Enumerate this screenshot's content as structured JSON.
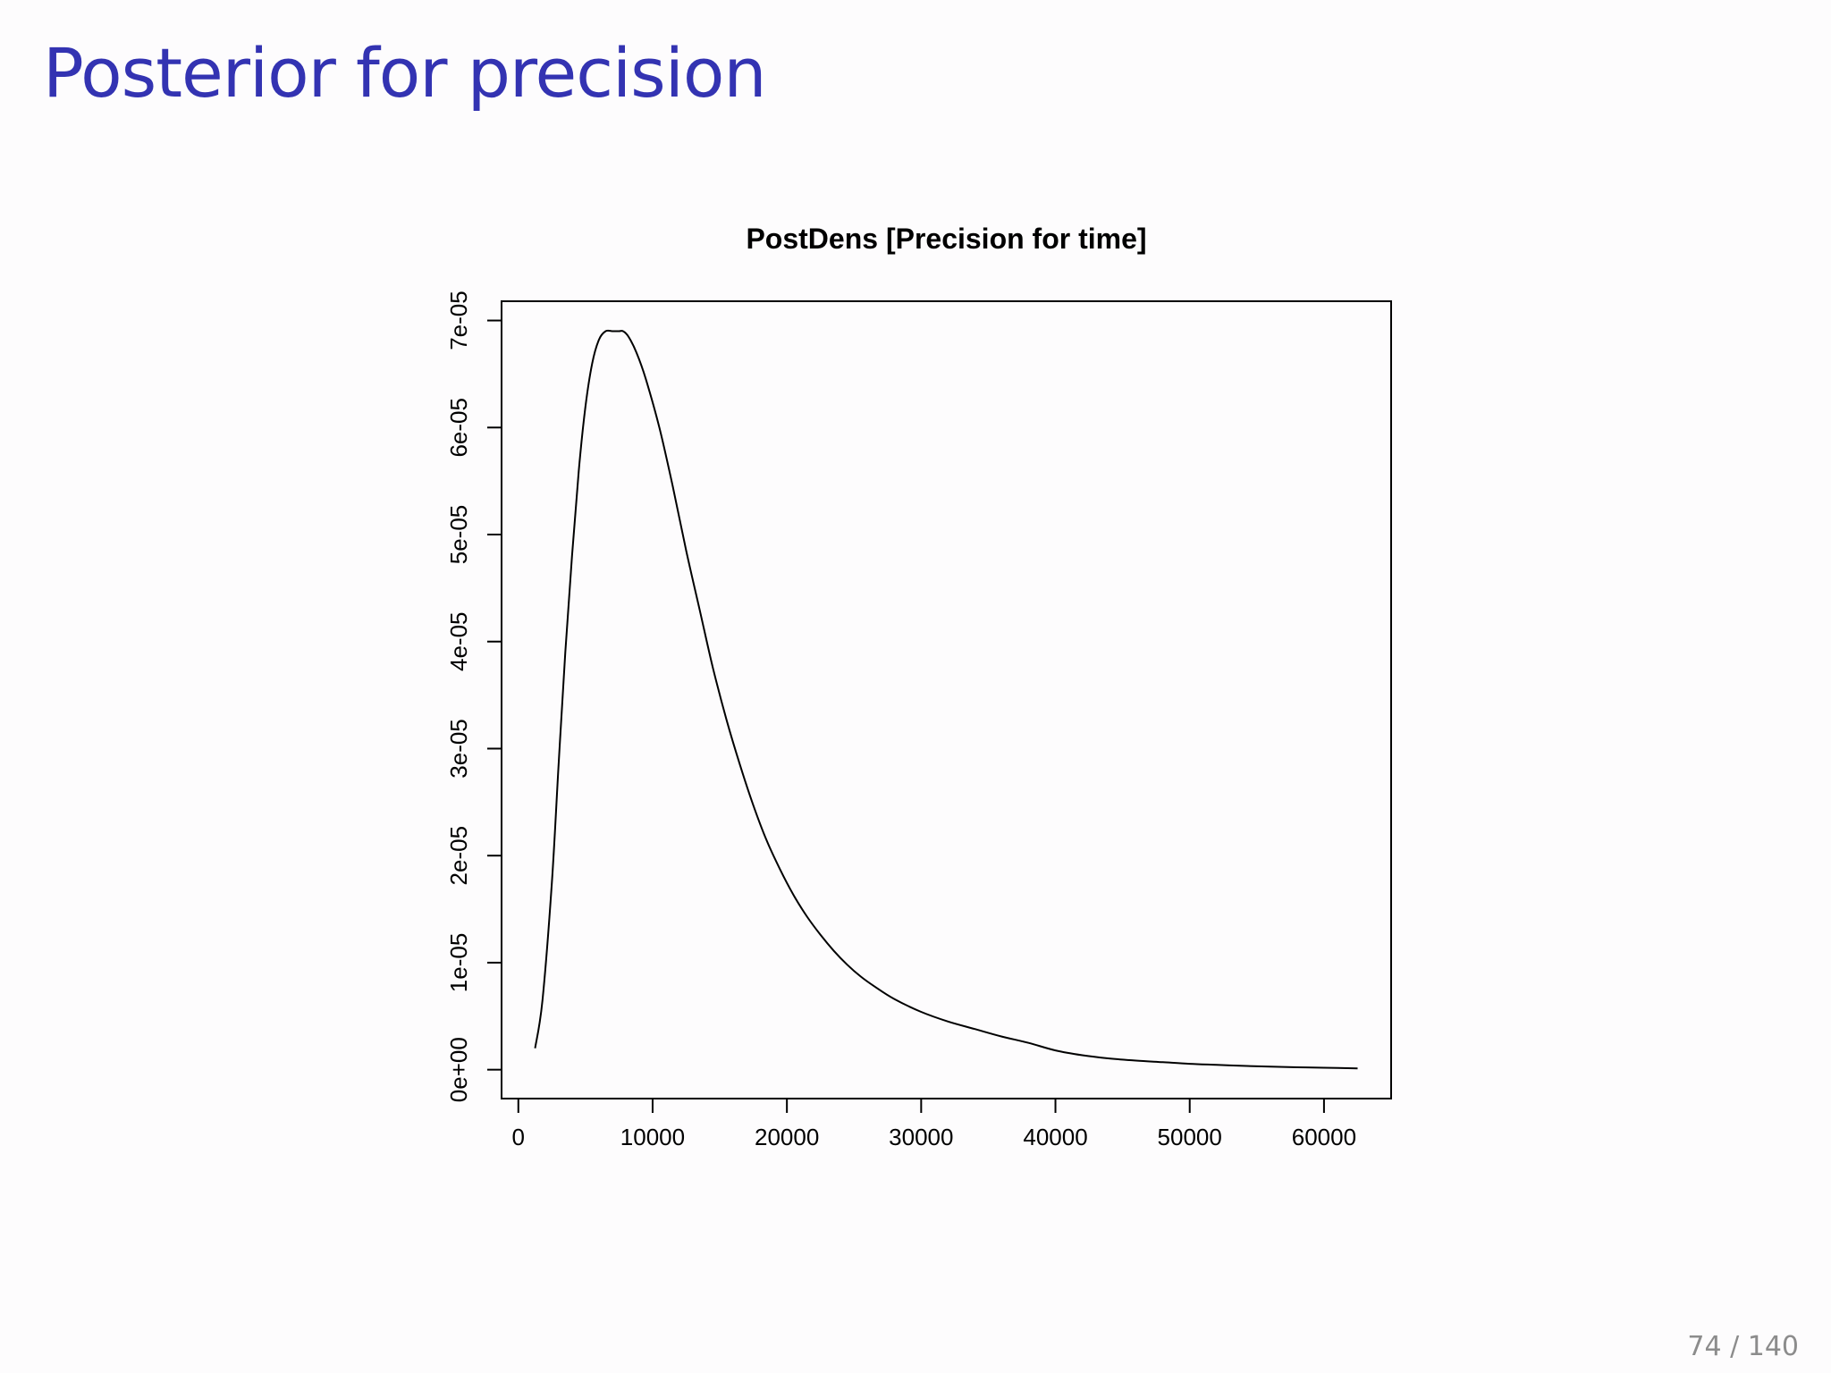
{
  "slide": {
    "title": "Posterior for precision",
    "page_number": "74 / 140"
  },
  "colors": {
    "title": "#3333b2",
    "curve": "#000000",
    "background": "#fdfcfd"
  },
  "chart_data": {
    "type": "line",
    "title": "PostDens [Precision for time]",
    "xlabel": "",
    "ylabel": "",
    "xlim": [
      -1250,
      65000
    ],
    "ylim": [
      -2.7e-06,
      7.18e-05
    ],
    "x_ticks": [
      0,
      10000,
      20000,
      30000,
      40000,
      50000,
      60000
    ],
    "x_tick_labels": [
      "0",
      "10000",
      "20000",
      "30000",
      "40000",
      "50000",
      "60000"
    ],
    "y_ticks": [
      0,
      1e-05,
      2e-05,
      3e-05,
      4e-05,
      5e-05,
      6e-05,
      7e-05
    ],
    "y_tick_labels": [
      "0e+00",
      "1e-05",
      "2e-05",
      "3e-05",
      "4e-05",
      "5e-05",
      "6e-05",
      "7e-05"
    ],
    "grid": false,
    "legend": "none",
    "series": [
      {
        "x": [
          1250,
          1800,
          2500,
          3000,
          3500,
          4000,
          4500,
          5000,
          5500,
          6000,
          6500,
          7000,
          7500,
          7800,
          8200,
          8800,
          9500,
          10500,
          11500,
          12500,
          13500,
          14500,
          15500,
          16500,
          17500,
          18500,
          19500,
          20500,
          21500,
          22500,
          23500,
          24500,
          25500,
          26500,
          28000,
          30000,
          32000,
          34000,
          36000,
          38000,
          40000,
          42000,
          44000,
          46000,
          48000,
          50000,
          52000,
          54000,
          56000,
          58000,
          60000,
          62500
        ],
        "y": [
          2e-06,
          6.5e-06,
          1.75e-05,
          2.85e-05,
          3.9e-05,
          4.8e-05,
          5.6e-05,
          6.2e-05,
          6.6e-05,
          6.82e-05,
          6.9e-05,
          6.9e-05,
          6.9e-05,
          6.9e-05,
          6.85e-05,
          6.7e-05,
          6.45e-05,
          6e-05,
          5.45e-05,
          4.85e-05,
          4.3e-05,
          3.75e-05,
          3.27e-05,
          2.85e-05,
          2.47e-05,
          2.14e-05,
          1.87e-05,
          1.63e-05,
          1.43e-05,
          1.26e-05,
          1.11e-05,
          9.8e-06,
          8.7e-06,
          7.8e-06,
          6.6e-06,
          5.4e-06,
          4.5e-06,
          3.8e-06,
          3.1e-06,
          2.5e-06,
          1.8e-06,
          1.35e-06,
          1.05e-06,
          8.5e-07,
          7e-07,
          5.5e-07,
          4.5e-07,
          3.6e-07,
          2.8e-07,
          2.2e-07,
          1.8e-07,
          1.2e-07
        ]
      }
    ]
  }
}
